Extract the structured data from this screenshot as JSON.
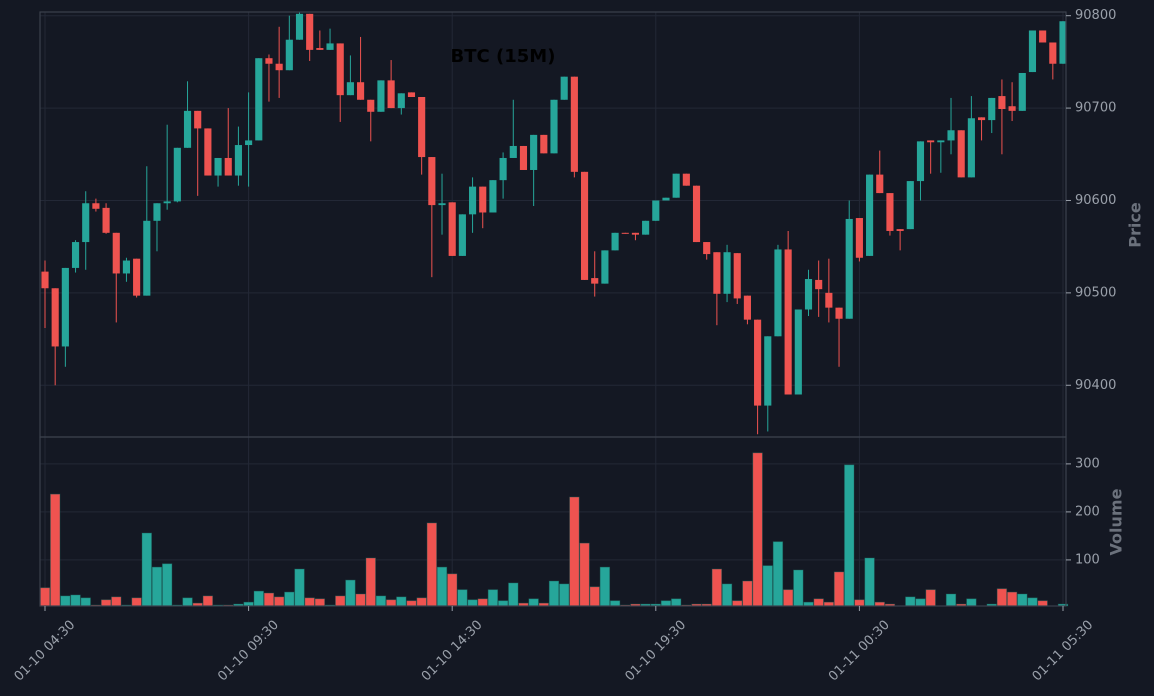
{
  "chart_data": {
    "type": "candlestick",
    "title": "BTC (15M)",
    "ylabel": "Price",
    "categories": [
      "01-10 04:30",
      null,
      null,
      null,
      null,
      null,
      null,
      null,
      null,
      null,
      null,
      null,
      null,
      null,
      null,
      null,
      null,
      null,
      null,
      null,
      "01-10 09:30",
      null,
      null,
      null,
      null,
      null,
      null,
      null,
      null,
      null,
      null,
      null,
      null,
      null,
      null,
      null,
      null,
      null,
      null,
      null,
      "01-10 14:30",
      null,
      null,
      null,
      null,
      null,
      null,
      null,
      null,
      null,
      null,
      null,
      null,
      null,
      null,
      null,
      null,
      null,
      null,
      null,
      "01-10 19:30",
      null,
      null,
      null,
      null,
      null,
      null,
      null,
      null,
      null,
      null,
      null,
      null,
      null,
      null,
      null,
      null,
      null,
      null,
      null,
      "01-11 00:30",
      null,
      null,
      null,
      null,
      null,
      null,
      null,
      null,
      null,
      null,
      null,
      null,
      null,
      null,
      null,
      null,
      null,
      null,
      null,
      "01-11 05:30"
    ],
    "open": [
      90523,
      90505,
      90442,
      90527,
      90555,
      90597,
      90592,
      90565,
      90521,
      90537,
      90497,
      90578,
      90597,
      90599,
      90657,
      90697,
      90678,
      90627,
      90646,
      90627,
      90660,
      90665,
      90754,
      90748,
      90741,
      90774,
      90802,
      90765,
      90763,
      90770,
      90714,
      90728,
      90709,
      90696,
      90730,
      90700,
      90717,
      90712,
      90647,
      90595,
      90598,
      90540,
      90585,
      90615,
      90587,
      90622,
      90646,
      90659,
      90633,
      90671,
      90651,
      90709,
      90734,
      90631,
      90516,
      90510,
      90546,
      90565,
      90565,
      90563,
      90578,
      90600,
      90603,
      90629,
      90616,
      90555,
      90544,
      90499,
      90543,
      90497,
      90471,
      90378,
      90453,
      90547,
      90390,
      90482,
      90514,
      90500,
      90484,
      90472,
      90581,
      90540,
      90628,
      90608,
      90569,
      90569,
      90621,
      90665,
      90663,
      90665,
      90676,
      90625,
      90690,
      90687,
      90713,
      90702,
      90697,
      90739,
      90784,
      90771,
      90748
    ],
    "high": [
      90535,
      90505,
      90527,
      90557,
      90610,
      90602,
      90597,
      90565,
      90538,
      90537,
      90637,
      90597,
      90682,
      90657,
      90729,
      90697,
      90678,
      90646,
      90700,
      90680,
      90717,
      90754,
      90758,
      90788,
      90800,
      90804,
      90802,
      90784,
      90786,
      90770,
      90757,
      90777,
      90709,
      90730,
      90752,
      90716,
      90717,
      90712,
      90647,
      90629,
      90598,
      90585,
      90625,
      90615,
      90622,
      90652,
      90709,
      90659,
      90671,
      90671,
      90709,
      90734,
      90734,
      90631,
      90545,
      90546,
      90565,
      90565,
      90565,
      90578,
      90600,
      90603,
      90629,
      90629,
      90616,
      90555,
      90544,
      90552,
      90543,
      90497,
      90471,
      90453,
      90552,
      90567,
      90482,
      90525,
      90535,
      90537,
      90484,
      90600,
      90581,
      90628,
      90654,
      90608,
      90569,
      90621,
      90664,
      90665,
      90665,
      90711,
      90676,
      90713,
      90690,
      90711,
      90731,
      90728,
      90738,
      90784,
      90784,
      90771,
      90794
    ],
    "low": [
      90462,
      90400,
      90420,
      90522,
      90525,
      90588,
      90564,
      90468,
      90512,
      90495,
      90497,
      90545,
      90590,
      90598,
      90657,
      90605,
      90627,
      90615,
      90627,
      90616,
      90615,
      90665,
      90707,
      90711,
      90741,
      90774,
      90751,
      90763,
      90763,
      90685,
      90714,
      90709,
      90664,
      90696,
      90700,
      90693,
      90712,
      90628,
      90517,
      90563,
      90540,
      90540,
      90565,
      90570,
      90587,
      90602,
      90646,
      90633,
      90594,
      90651,
      90651,
      90709,
      90625,
      90514,
      90496,
      90510,
      90546,
      90564,
      90557,
      90563,
      90578,
      90600,
      90603,
      90616,
      90555,
      90536,
      90465,
      90490,
      90488,
      90466,
      90347,
      90350,
      90453,
      90390,
      90390,
      90475,
      90474,
      90468,
      90420,
      90472,
      90534,
      90540,
      90608,
      90562,
      90546,
      90569,
      90600,
      90629,
      90630,
      90650,
      90625,
      90625,
      90665,
      90673,
      90650,
      90686,
      90697,
      90739,
      90771,
      90731,
      90748
    ],
    "close": [
      90505,
      90442,
      90527,
      90555,
      90597,
      90591,
      90565,
      90521,
      90535,
      90497,
      90578,
      90597,
      90599,
      90657,
      90697,
      90678,
      90627,
      90646,
      90627,
      90660,
      90665,
      90754,
      90748,
      90741,
      90774,
      90802,
      90763,
      90763,
      90770,
      90714,
      90728,
      90709,
      90696,
      90730,
      90700,
      90716,
      90712,
      90647,
      90595,
      90597,
      90540,
      90585,
      90615,
      90587,
      90622,
      90646,
      90659,
      90633,
      90671,
      90651,
      90709,
      90734,
      90631,
      90514,
      90510,
      90546,
      90565,
      90564,
      90563,
      90578,
      90600,
      90603,
      90629,
      90616,
      90555,
      90542,
      90499,
      90544,
      90494,
      90471,
      90378,
      90453,
      90547,
      90390,
      90482,
      90515,
      90504,
      90484,
      90472,
      90580,
      90538,
      90628,
      90608,
      90567,
      90567,
      90621,
      90664,
      90663,
      90665,
      90676,
      90625,
      90689,
      90687,
      90711,
      90699,
      90697,
      90738,
      90784,
      90771,
      90748,
      90794
    ],
    "up_color": "#26a69a",
    "down_color": "#ef5350",
    "ylim": [
      90344,
      90804
    ],
    "yticks": [
      90400,
      90500,
      90600,
      90700,
      90800
    ],
    "grid": true,
    "volume": {
      "ylabel": "Volume",
      "values": [
        42,
        237,
        25,
        27,
        21,
        6,
        17,
        23,
        6,
        21,
        156,
        85,
        92,
        6,
        21,
        10,
        25,
        6,
        6,
        8,
        12,
        35,
        31,
        23,
        33,
        81,
        21,
        19,
        6,
        25,
        58,
        29,
        104,
        25,
        17,
        23,
        15,
        21,
        177,
        85,
        71,
        38,
        17,
        19,
        38,
        15,
        52,
        10,
        19,
        10,
        56,
        50,
        231,
        135,
        44,
        85,
        15,
        6,
        8,
        8,
        8,
        15,
        19,
        6,
        8,
        8,
        81,
        50,
        15,
        56,
        323,
        88,
        138,
        38,
        79,
        12,
        19,
        12,
        75,
        298,
        17,
        104,
        12,
        8,
        4,
        23,
        19,
        38,
        4,
        29,
        8,
        19,
        4,
        8,
        40,
        33,
        29,
        21,
        15,
        4,
        8
      ],
      "ylim": [
        4,
        356
      ],
      "yticks": [
        100,
        200,
        300
      ]
    }
  }
}
